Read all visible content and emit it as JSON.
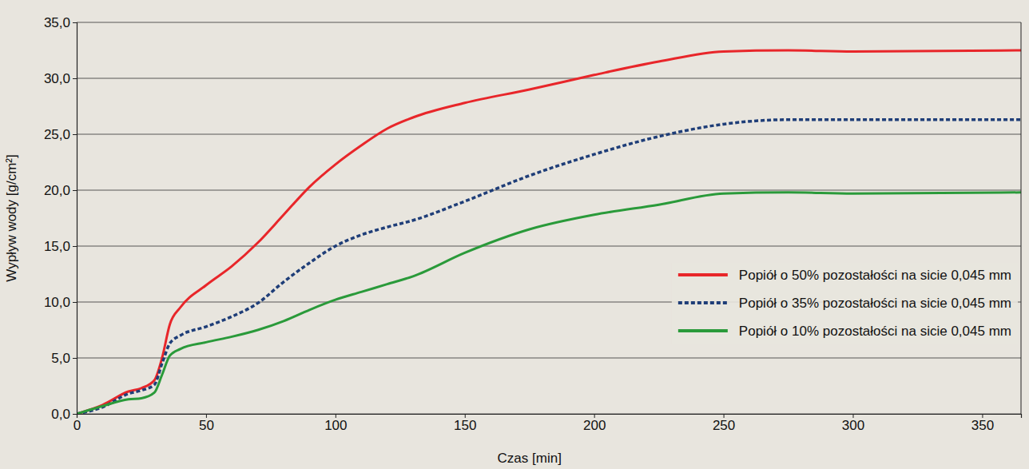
{
  "chart_data": {
    "type": "line",
    "x_label": "Czas [min]",
    "y_label": "Wypływ wody [g/cm²]",
    "x": [
      0,
      10,
      20,
      25,
      30,
      33,
      36,
      40,
      50,
      60,
      70,
      80,
      90,
      100,
      110,
      120,
      130,
      150,
      175,
      200,
      225,
      250,
      275,
      300,
      365
    ],
    "series": [
      {
        "name": "Popiół o 50% pozostałości na sicie 0,045 mm",
        "color": "#e8262a",
        "line_style": "solid",
        "values": [
          0,
          0.8,
          2.0,
          2.3,
          3.0,
          5.0,
          8.0,
          9.5,
          11.5,
          13.2,
          15.3,
          17.8,
          20.3,
          22.3,
          24.0,
          25.5,
          26.5,
          27.8,
          29.0,
          30.3,
          31.5,
          32.4,
          32.5,
          32.4,
          32.5
        ]
      },
      {
        "name": "Popiół o 35% pozostałości na sicie 0,045 mm",
        "color": "#1f3e78",
        "line_style": "dashed",
        "values": [
          0,
          0.6,
          1.8,
          2.1,
          2.6,
          4.5,
          6.3,
          7.0,
          7.8,
          8.7,
          9.9,
          11.8,
          13.5,
          15.0,
          16.0,
          16.7,
          17.3,
          19.0,
          21.3,
          23.2,
          24.8,
          25.9,
          26.3,
          26.3,
          26.3
        ]
      },
      {
        "name": "Popiół o 10% pozostałości na sicie 0,045 mm",
        "color": "#2a9a3a",
        "line_style": "solid",
        "values": [
          0,
          0.7,
          1.3,
          1.4,
          1.9,
          3.5,
          5.2,
          5.8,
          6.4,
          6.9,
          7.5,
          8.3,
          9.3,
          10.2,
          10.9,
          11.6,
          12.3,
          14.4,
          16.5,
          17.8,
          18.7,
          19.7,
          19.8,
          19.7,
          19.8
        ]
      }
    ],
    "xlim": [
      0,
      365
    ],
    "xticks": [
      0,
      50,
      100,
      150,
      200,
      250,
      300,
      350
    ],
    "ylim": [
      0,
      35
    ],
    "yticks": [
      {
        "value": 0,
        "label": "0,0"
      },
      {
        "value": 5,
        "label": "5,0"
      },
      {
        "value": 10,
        "label": "10,0"
      },
      {
        "value": 15,
        "label": "15,0"
      },
      {
        "value": 20,
        "label": "20,0"
      },
      {
        "value": 25,
        "label": "25,0"
      },
      {
        "value": 30,
        "label": "30,0"
      },
      {
        "value": 35,
        "label": "35,0"
      }
    ],
    "grid": true,
    "legend": "right"
  }
}
